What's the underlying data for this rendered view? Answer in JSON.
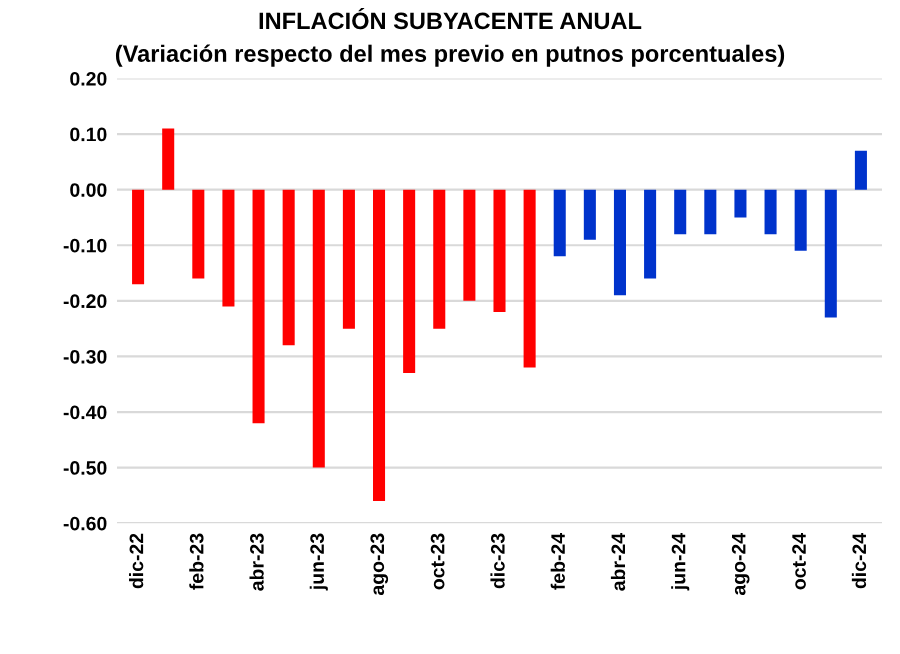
{
  "chart_data": {
    "type": "bar",
    "title": "INFLACIÓN SUBYACENTE ANUAL",
    "subtitle": "(Variación respecto del mes previo en putnos porcentuales)",
    "categories": [
      "dic-22",
      null,
      "feb-23",
      null,
      "abr-23",
      null,
      "jun-23",
      null,
      "ago-23",
      null,
      "oct-23",
      null,
      "dic-23",
      null,
      "feb-24",
      null,
      "abr-24",
      null,
      "jun-24",
      null,
      "ago-24",
      null,
      "oct-24",
      null,
      "dic-24"
    ],
    "values": [
      -0.17,
      0.11,
      -0.16,
      -0.21,
      -0.42,
      -0.28,
      -0.5,
      -0.25,
      -0.56,
      -0.33,
      -0.25,
      -0.2,
      -0.22,
      -0.32,
      -0.12,
      -0.09,
      -0.19,
      -0.16,
      -0.08,
      -0.08,
      -0.05,
      -0.08,
      -0.11,
      -0.23,
      0.07
    ],
    "colors": [
      "#ff0000",
      "#ff0000",
      "#ff0000",
      "#ff0000",
      "#ff0000",
      "#ff0000",
      "#ff0000",
      "#ff0000",
      "#ff0000",
      "#ff0000",
      "#ff0000",
      "#ff0000",
      "#ff0000",
      "#ff0000",
      "#0033cc",
      "#0033cc",
      "#0033cc",
      "#0033cc",
      "#0033cc",
      "#0033cc",
      "#0033cc",
      "#0033cc",
      "#0033cc",
      "#0033cc",
      "#0033cc"
    ],
    "ylim": [
      -0.6,
      0.2
    ],
    "yticks": [
      {
        "value": 0.2,
        "label": "0.20"
      },
      {
        "value": 0.1,
        "label": "0.10"
      },
      {
        "value": 0,
        "label": "0.00"
      },
      {
        "value": -0.1,
        "label": "-0.10"
      },
      {
        "value": -0.2,
        "label": "-0.20"
      },
      {
        "value": -0.3,
        "label": "-0.30"
      },
      {
        "value": -0.4,
        "label": "-0.40"
      },
      {
        "value": -0.5,
        "label": "-0.50"
      },
      {
        "value": -0.6,
        "label": "-0.60"
      }
    ],
    "grid": "y"
  }
}
